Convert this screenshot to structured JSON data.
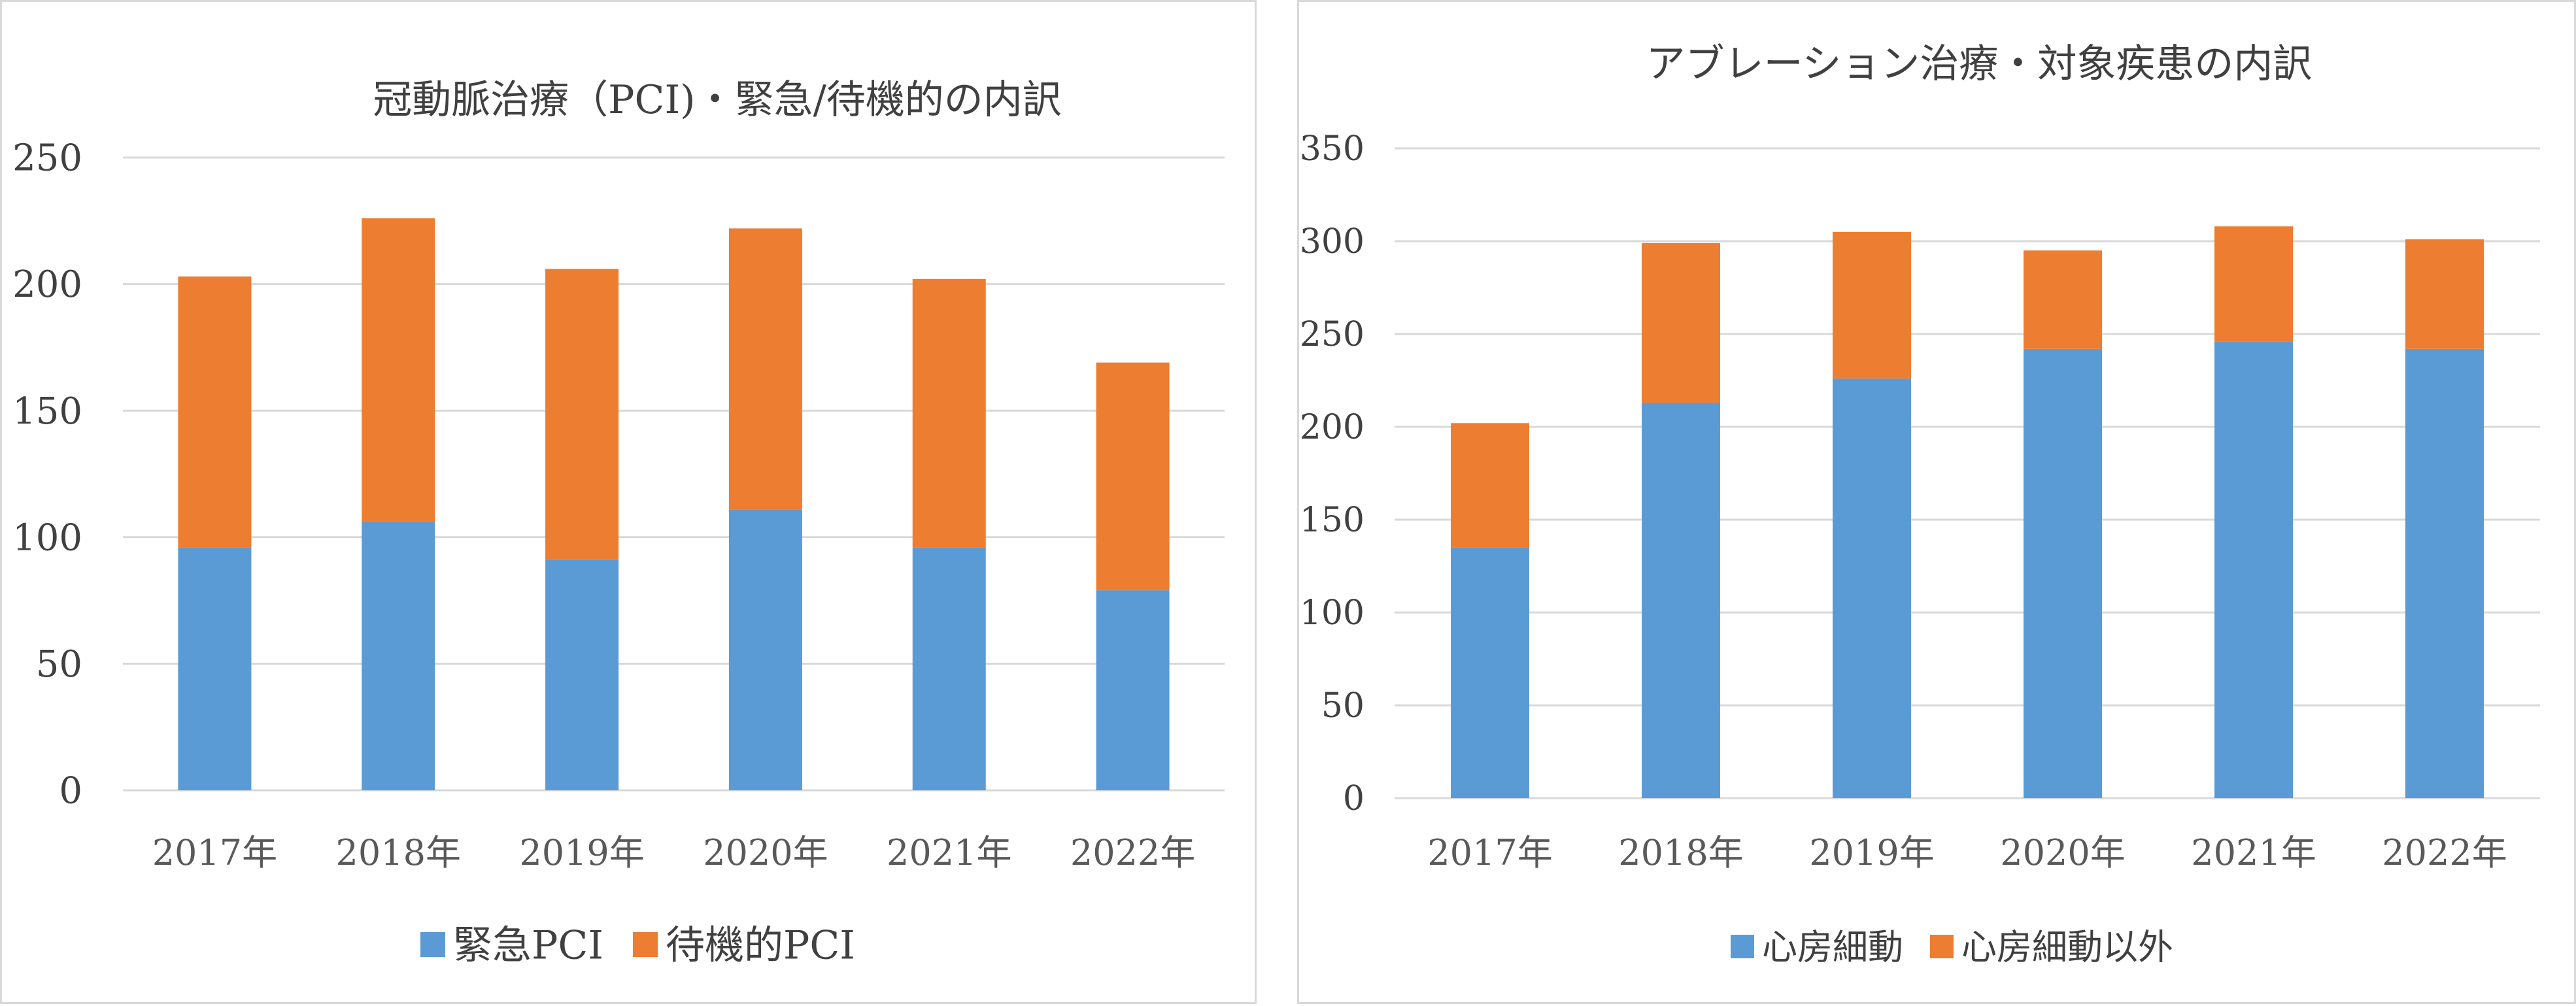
{
  "chart_data": [
    {
      "type": "bar",
      "stacked": true,
      "title": "冠動脈治療（PCI)・緊急/待機的の内訳",
      "categories": [
        "2017年",
        "2018年",
        "2019年",
        "2020年",
        "2021年",
        "2022年"
      ],
      "series": [
        {
          "name": "緊急PCI",
          "color": "#5b9bd5",
          "values": [
            96,
            106,
            91,
            111,
            96,
            79
          ]
        },
        {
          "name": "待機的PCI",
          "color": "#ed7d31",
          "values": [
            107,
            120,
            115,
            111,
            106,
            90
          ]
        }
      ],
      "ylim": [
        0,
        250
      ],
      "yticks": [
        "0",
        "50",
        "100",
        "150",
        "200",
        "250"
      ],
      "grid": true,
      "legend": "bottom"
    },
    {
      "type": "bar",
      "stacked": true,
      "title": "アブレーション治療・対象疾患の内訳",
      "categories": [
        "2017年",
        "2018年",
        "2019年",
        "2020年",
        "2021年",
        "2022年"
      ],
      "series": [
        {
          "name": "心房細動",
          "color": "#5b9bd5",
          "values": [
            135,
            213,
            226,
            242,
            246,
            242
          ]
        },
        {
          "name": "心房細動以外",
          "color": "#ed7d31",
          "values": [
            67,
            86,
            79,
            53,
            62,
            59
          ]
        }
      ],
      "ylim": [
        0,
        350
      ],
      "yticks": [
        "0",
        "50",
        "100",
        "150",
        "200",
        "250",
        "300",
        "350"
      ],
      "grid": true,
      "legend": "bottom"
    }
  ]
}
